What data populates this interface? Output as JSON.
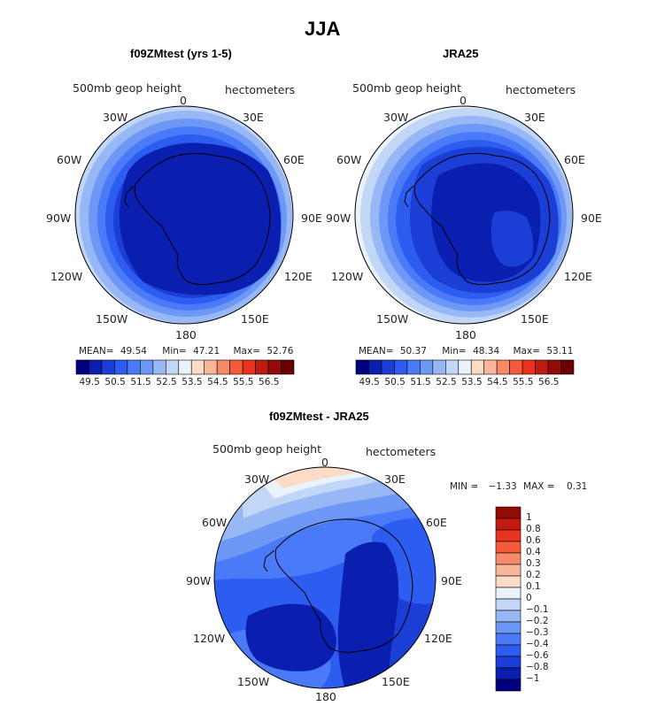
{
  "title": "JJA",
  "units_label": "hectometers",
  "variable_label": "500mb geop height",
  "longitude_labels": {
    "n": "0",
    "ne30": "30E",
    "ne60": "60E",
    "e90": "90E",
    "e120": "120E",
    "e150": "150E",
    "s": "180",
    "w150": "150W",
    "w120": "120W",
    "w90": "90W",
    "w60": "60W",
    "w30": "30W"
  },
  "panels": [
    {
      "subtitle": "f09ZMtest (yrs 1-5)",
      "mean_label": "MEAN=",
      "mean_value": "49.54",
      "min_label": "Min=",
      "min_value": "47.21",
      "max_label": "Max=",
      "max_value": "52.76"
    },
    {
      "subtitle": "JRA25",
      "mean_label": "MEAN=",
      "mean_value": "50.37",
      "min_label": "Min=",
      "min_value": "48.34",
      "max_label": "Max=",
      "max_value": "53.11"
    }
  ],
  "abs_colorbar": {
    "colors": [
      "#00007f",
      "#0a1fb0",
      "#1b3fd6",
      "#2c5cf0",
      "#4a7af7",
      "#6e98f6",
      "#98b8f5",
      "#c2d6f6",
      "#eaf2fb",
      "#fcdcc6",
      "#f9b69a",
      "#f78a68",
      "#f55a3c",
      "#e8341e",
      "#c11a10",
      "#930a06",
      "#6a0000"
    ],
    "tick_labels": [
      "49.5",
      "50.5",
      "51.5",
      "52.5",
      "53.5",
      "54.5",
      "55.5",
      "56.5"
    ]
  },
  "diff_panel": {
    "subtitle": "f09ZMtest - JRA25",
    "min_label": "MIN =",
    "min_value": "−1.33",
    "max_label": "MAX =",
    "max_value": "0.31"
  },
  "diff_colorbar": {
    "colors_top_to_bottom": [
      "#930a06",
      "#c11a10",
      "#e8341e",
      "#f55a3c",
      "#f78a68",
      "#f9b69a",
      "#fcdcc6",
      "#eaf2fb",
      "#c2d6f6",
      "#98b8f5",
      "#6e98f6",
      "#4a7af7",
      "#2c5cf0",
      "#1b3fd6",
      "#0a1fb0",
      "#00007f"
    ],
    "tick_labels": [
      "1",
      "0.8",
      "0.6",
      "0.4",
      "0.3",
      "0.2",
      "0.1",
      "0",
      "−0.1",
      "−0.2",
      "−0.3",
      "−0.4",
      "−0.6",
      "−0.8",
      "−1"
    ]
  }
}
